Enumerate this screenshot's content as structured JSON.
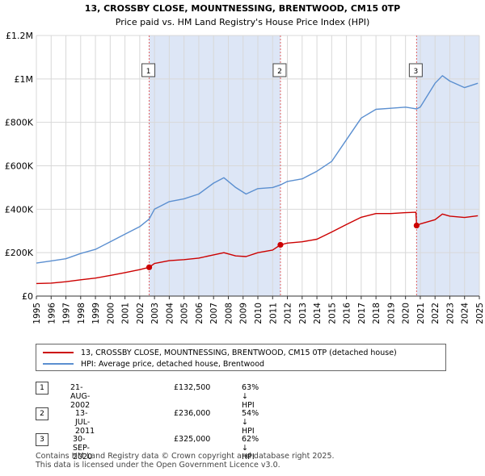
{
  "chart_data": {
    "type": "line",
    "title": "13, CROSSBY CLOSE, MOUNTNESSING, BRENTWOOD, CM15 0TP",
    "subtitle": "Price paid vs. HM Land Registry's House Price Index (HPI)",
    "xlabel": "",
    "ylabel": "",
    "xlim": [
      1995,
      2025
    ],
    "ylim": [
      0,
      1200000
    ],
    "x_ticks": [
      "1995",
      "1996",
      "1997",
      "1998",
      "1999",
      "2000",
      "2001",
      "2002",
      "2003",
      "2004",
      "2005",
      "2006",
      "2007",
      "2008",
      "2009",
      "2010",
      "2011",
      "2012",
      "2013",
      "2014",
      "2015",
      "2016",
      "2017",
      "2018",
      "2019",
      "2020",
      "2021",
      "2022",
      "2023",
      "2024",
      "2025"
    ],
    "y_ticks": [
      {
        "value": 0,
        "label": "£0"
      },
      {
        "value": 200000,
        "label": "£200K"
      },
      {
        "value": 400000,
        "label": "£400K"
      },
      {
        "value": 600000,
        "label": "£600K"
      },
      {
        "value": 800000,
        "label": "£800K"
      },
      {
        "value": 1000000,
        "label": "£1M"
      },
      {
        "value": 1200000,
        "label": "£1.2M"
      }
    ],
    "grid": true,
    "colors": {
      "property": "#cc0000",
      "hpi": "#5b8fd0",
      "shade": "#dde6f6",
      "vline": "#e06060"
    },
    "series": [
      {
        "name": "13, CROSSBY CLOSE, MOUNTNESSING, BRENTWOOD, CM15 0TP (detached house)",
        "color": "#cc0000",
        "x": [
          1995.0,
          1996.0,
          1997.0,
          1998.0,
          1999.0,
          2000.0,
          2001.0,
          2002.0,
          2002.64,
          2003.0,
          2004.0,
          2005.0,
          2006.0,
          2007.0,
          2007.7,
          2008.5,
          2009.2,
          2010.0,
          2011.0,
          2011.53,
          2012.0,
          2013.0,
          2014.0,
          2015.0,
          2016.0,
          2017.0,
          2018.0,
          2019.0,
          2020.0,
          2020.7,
          2020.75,
          2021.0,
          2022.0,
          2022.5,
          2023.0,
          2024.0,
          2024.9
        ],
        "y": [
          58000,
          60000,
          66000,
          75000,
          83000,
          95000,
          108000,
          122000,
          132500,
          150000,
          163000,
          168000,
          175000,
          190000,
          200000,
          185000,
          182000,
          200000,
          212000,
          236000,
          244000,
          250000,
          262000,
          295000,
          330000,
          363000,
          380000,
          380000,
          384000,
          386000,
          325000,
          332000,
          352000,
          378000,
          368000,
          362000,
          370000
        ]
      },
      {
        "name": "HPI: Average price, detached house, Brentwood",
        "color": "#5b8fd0",
        "x": [
          1995.0,
          1996.0,
          1997.0,
          1998.0,
          1999.0,
          2000.0,
          2001.0,
          2002.0,
          2002.64,
          2003.0,
          2004.0,
          2005.0,
          2006.0,
          2007.0,
          2007.7,
          2008.5,
          2009.2,
          2010.0,
          2011.0,
          2011.53,
          2012.0,
          2013.0,
          2014.0,
          2015.0,
          2016.0,
          2017.0,
          2018.0,
          2019.0,
          2020.0,
          2020.75,
          2021.0,
          2022.0,
          2022.5,
          2023.0,
          2024.0,
          2024.9
        ],
        "y": [
          152000,
          162000,
          172000,
          196000,
          215000,
          250000,
          285000,
          320000,
          355000,
          400000,
          435000,
          448000,
          470000,
          520000,
          545000,
          500000,
          470000,
          495000,
          500000,
          512000,
          528000,
          540000,
          575000,
          620000,
          720000,
          820000,
          860000,
          865000,
          870000,
          862000,
          870000,
          980000,
          1015000,
          990000,
          960000,
          980000
        ]
      }
    ],
    "transactions": [
      {
        "n": "1",
        "date": "21-AUG-2002",
        "price": "£132,500",
        "hpi": "63% ↓ HPI",
        "x": 2002.64,
        "y": 132500
      },
      {
        "n": "2",
        "date": "13-JUL-2011",
        "price": "£236,000",
        "hpi": "54% ↓ HPI",
        "x": 2011.53,
        "y": 236000
      },
      {
        "n": "3",
        "date": "30-SEP-2020",
        "price": "£325,000",
        "hpi": "62% ↓ HPI",
        "x": 2020.75,
        "y": 325000
      }
    ],
    "shaded_ranges": [
      [
        2002.64,
        2011.53
      ],
      [
        2020.75,
        2025
      ]
    ]
  },
  "legend": {
    "property": "13, CROSSBY CLOSE, MOUNTNESSING, BRENTWOOD, CM15 0TP (detached house)",
    "hpi": "HPI: Average price, detached house, Brentwood"
  },
  "footer": {
    "line1": "Contains HM Land Registry data © Crown copyright and database right 2025.",
    "line2": "This data is licensed under the Open Government Licence v3.0."
  }
}
